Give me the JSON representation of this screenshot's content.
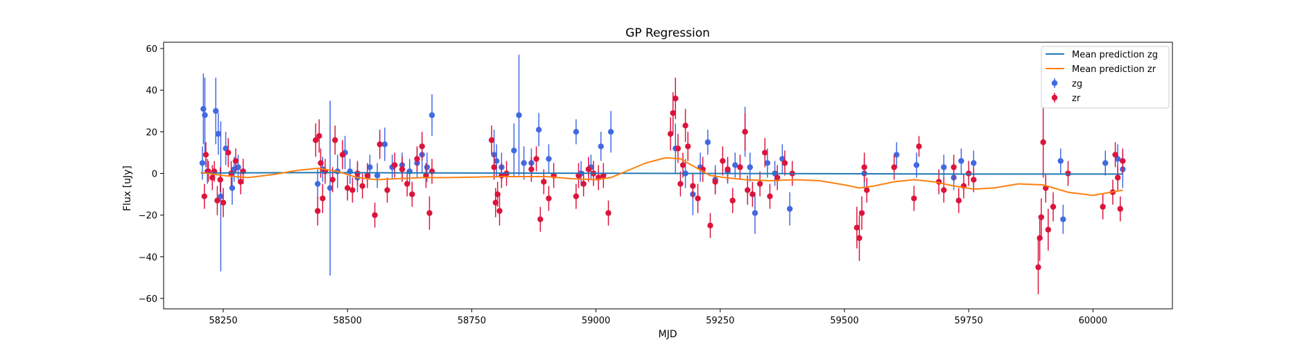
{
  "chart_data": {
    "type": "scatter",
    "title": "GP Regression",
    "xlabel": "MJD",
    "ylabel": "Flux [uJy]",
    "xlim": [
      58130,
      60160
    ],
    "ylim": [
      -65,
      63
    ],
    "xticks": [
      58250,
      58500,
      58750,
      59000,
      59250,
      59500,
      59750,
      60000
    ],
    "yticks": [
      -60,
      -40,
      -20,
      0,
      20,
      40,
      60
    ],
    "grid": false,
    "legend_position": "top-right",
    "colors": {
      "zg": "#4169e1",
      "zr": "#dc143c",
      "mean_zg": "#1f77b4",
      "mean_zr": "#ff7f0e"
    },
    "lines": [
      {
        "name": "Mean prediction zg",
        "x": [
          58205,
          58300,
          58450,
          58600,
          58800,
          59000,
          59200,
          59400,
          59600,
          59800,
          60000,
          60060
        ],
        "y": [
          0.2,
          0.3,
          0.4,
          0.3,
          0.2,
          0.1,
          0.0,
          -0.1,
          -0.2,
          -0.3,
          -0.3,
          -0.3
        ]
      },
      {
        "name": "Mean prediction zr",
        "x": [
          58205,
          58250,
          58300,
          58350,
          58400,
          58440,
          58480,
          58520,
          58560,
          58600,
          58650,
          58700,
          58750,
          58800,
          58850,
          58900,
          58950,
          59000,
          59030,
          59060,
          59100,
          59140,
          59170,
          59200,
          59230,
          59260,
          59300,
          59350,
          59400,
          59450,
          59500,
          59530,
          59560,
          59600,
          59640,
          59680,
          59720,
          59760,
          59800,
          59850,
          59900,
          59950,
          60000,
          60060
        ],
        "y": [
          0.5,
          -1.0,
          -2.0,
          -0.5,
          1.5,
          2.5,
          1.0,
          -2.0,
          -3.0,
          -2.5,
          -2.0,
          -2.0,
          -1.8,
          -1.5,
          -1.5,
          -1.5,
          -2.5,
          -3.0,
          -2.0,
          1.0,
          5.0,
          7.5,
          7.0,
          3.0,
          -1.0,
          -2.0,
          -3.0,
          -3.5,
          -3.0,
          -3.5,
          -5.5,
          -7.0,
          -6.0,
          -4.0,
          -3.0,
          -4.0,
          -6.0,
          -7.5,
          -7.0,
          -5.0,
          -5.5,
          -9.0,
          -10.5,
          -8.0
        ]
      }
    ],
    "series": [
      {
        "name": "zg",
        "x": [
          58208,
          58210,
          58213,
          58218,
          58235,
          58240,
          58245,
          58255,
          58268,
          58272,
          58280,
          58440,
          58450,
          58465,
          58480,
          58495,
          58505,
          58520,
          58545,
          58560,
          58575,
          58590,
          58610,
          58625,
          58640,
          58650,
          58660,
          58670,
          58795,
          58800,
          58810,
          58835,
          58845,
          58855,
          58870,
          58885,
          58905,
          58960,
          58970,
          58990,
          59010,
          59030,
          59160,
          59180,
          59195,
          59210,
          59225,
          59240,
          59265,
          59280,
          59300,
          59310,
          59320,
          59345,
          59360,
          59375,
          59390,
          59540,
          59605,
          59645,
          59700,
          59720,
          59735,
          59760,
          59940,
          59935,
          60025,
          60050,
          60060
        ],
        "y": [
          5,
          31,
          28,
          1,
          30,
          19,
          -11,
          12,
          -7,
          2,
          3,
          -5,
          2,
          -7,
          1,
          10,
          1,
          -2,
          3,
          -1,
          14,
          3,
          4,
          1,
          5,
          9,
          3,
          28,
          9,
          6,
          3,
          11,
          28,
          5,
          5,
          21,
          7,
          20,
          0,
          3,
          13,
          20,
          12,
          0,
          -10,
          3,
          15,
          -3,
          1,
          4,
          20,
          3,
          -19,
          5,
          0,
          7,
          -17,
          0,
          9,
          4,
          3,
          -2,
          6,
          5,
          -22,
          6,
          5,
          7,
          2
        ],
        "err": [
          8,
          17,
          18,
          6,
          16,
          10,
          36,
          8,
          8,
          6,
          6,
          7,
          6,
          42,
          8,
          8,
          6,
          7,
          6,
          6,
          8,
          6,
          6,
          6,
          7,
          9,
          7,
          10,
          12,
          8,
          7,
          13,
          29,
          8,
          7,
          8,
          7,
          6,
          6,
          6,
          7,
          10,
          12,
          7,
          10,
          7,
          6,
          7,
          6,
          6,
          12,
          7,
          10,
          7,
          6,
          7,
          8,
          7,
          6,
          6,
          6,
          6,
          6,
          6,
          7,
          6,
          6,
          7,
          9
        ]
      },
      {
        "name": "zr",
        "x": [
          58212,
          58215,
          58220,
          58228,
          58232,
          58238,
          58244,
          58250,
          58260,
          58266,
          58275,
          58285,
          58290,
          58436,
          58440,
          58443,
          58446,
          58450,
          58455,
          58470,
          58475,
          58490,
          58500,
          58510,
          58520,
          58530,
          58540,
          58555,
          58565,
          58580,
          58595,
          58610,
          58620,
          58630,
          58640,
          58650,
          58658,
          58665,
          58670,
          58790,
          58795,
          58798,
          58802,
          58806,
          58810,
          58820,
          58870,
          58880,
          58888,
          58895,
          58905,
          58915,
          58960,
          58965,
          58975,
          58985,
          58995,
          59005,
          59015,
          59025,
          59150,
          59155,
          59160,
          59165,
          59170,
          59175,
          59180,
          59185,
          59195,
          59205,
          59215,
          59230,
          59240,
          59255,
          59265,
          59275,
          59290,
          59300,
          59305,
          59315,
          59330,
          59340,
          59350,
          59365,
          59380,
          59395,
          59525,
          59530,
          59535,
          59540,
          59545,
          59600,
          59640,
          59650,
          59690,
          59700,
          59720,
          59730,
          59740,
          59750,
          59760,
          59890,
          59893,
          59896,
          59900,
          59905,
          59910,
          59920,
          59950,
          60020,
          60040,
          60045,
          60050,
          60055,
          60060
        ],
        "y": [
          -11,
          9,
          1,
          -2,
          1,
          -13,
          -3,
          -14,
          10,
          0,
          6,
          -4,
          1,
          16,
          -18,
          18,
          5,
          -12,
          1,
          -3,
          16,
          9,
          -7,
          -8,
          0,
          -6,
          -1,
          -20,
          14,
          -8,
          4,
          2,
          -5,
          -10,
          7,
          13,
          -1,
          -19,
          1,
          16,
          3,
          -14,
          -10,
          -18,
          -1,
          0,
          2,
          7,
          -22,
          -4,
          -12,
          -1,
          -11,
          -1,
          -5,
          2,
          0,
          -2,
          -1,
          -19,
          19,
          29,
          36,
          12,
          -5,
          4,
          23,
          13,
          -6,
          -12,
          2,
          -25,
          -4,
          6,
          2,
          -13,
          3,
          20,
          -8,
          -10,
          -5,
          10,
          -11,
          -2,
          5,
          0,
          -26,
          -31,
          -19,
          3,
          -8,
          3,
          -12,
          13,
          -4,
          -8,
          3,
          -13,
          -6,
          0,
          -3,
          -45,
          -31,
          -21,
          15,
          -7,
          -27,
          -16,
          0,
          -16,
          -9,
          9,
          -2,
          -17,
          6
        ],
        "err": [
          6,
          6,
          5,
          6,
          5,
          7,
          6,
          7,
          7,
          6,
          6,
          6,
          6,
          8,
          7,
          8,
          7,
          7,
          6,
          6,
          7,
          7,
          6,
          6,
          6,
          6,
          6,
          6,
          7,
          6,
          6,
          6,
          6,
          6,
          6,
          7,
          6,
          8,
          6,
          7,
          6,
          7,
          6,
          7,
          6,
          6,
          6,
          6,
          6,
          6,
          6,
          6,
          6,
          6,
          6,
          6,
          6,
          6,
          6,
          6,
          8,
          10,
          10,
          7,
          6,
          6,
          8,
          7,
          6,
          7,
          6,
          6,
          6,
          7,
          6,
          6,
          6,
          9,
          7,
          6,
          6,
          7,
          6,
          6,
          6,
          6,
          10,
          11,
          8,
          7,
          6,
          6,
          6,
          5,
          6,
          6,
          6,
          6,
          6,
          6,
          6,
          13,
          11,
          9,
          17,
          7,
          10,
          7,
          6,
          6,
          6,
          6,
          6,
          6,
          6
        ]
      }
    ]
  }
}
